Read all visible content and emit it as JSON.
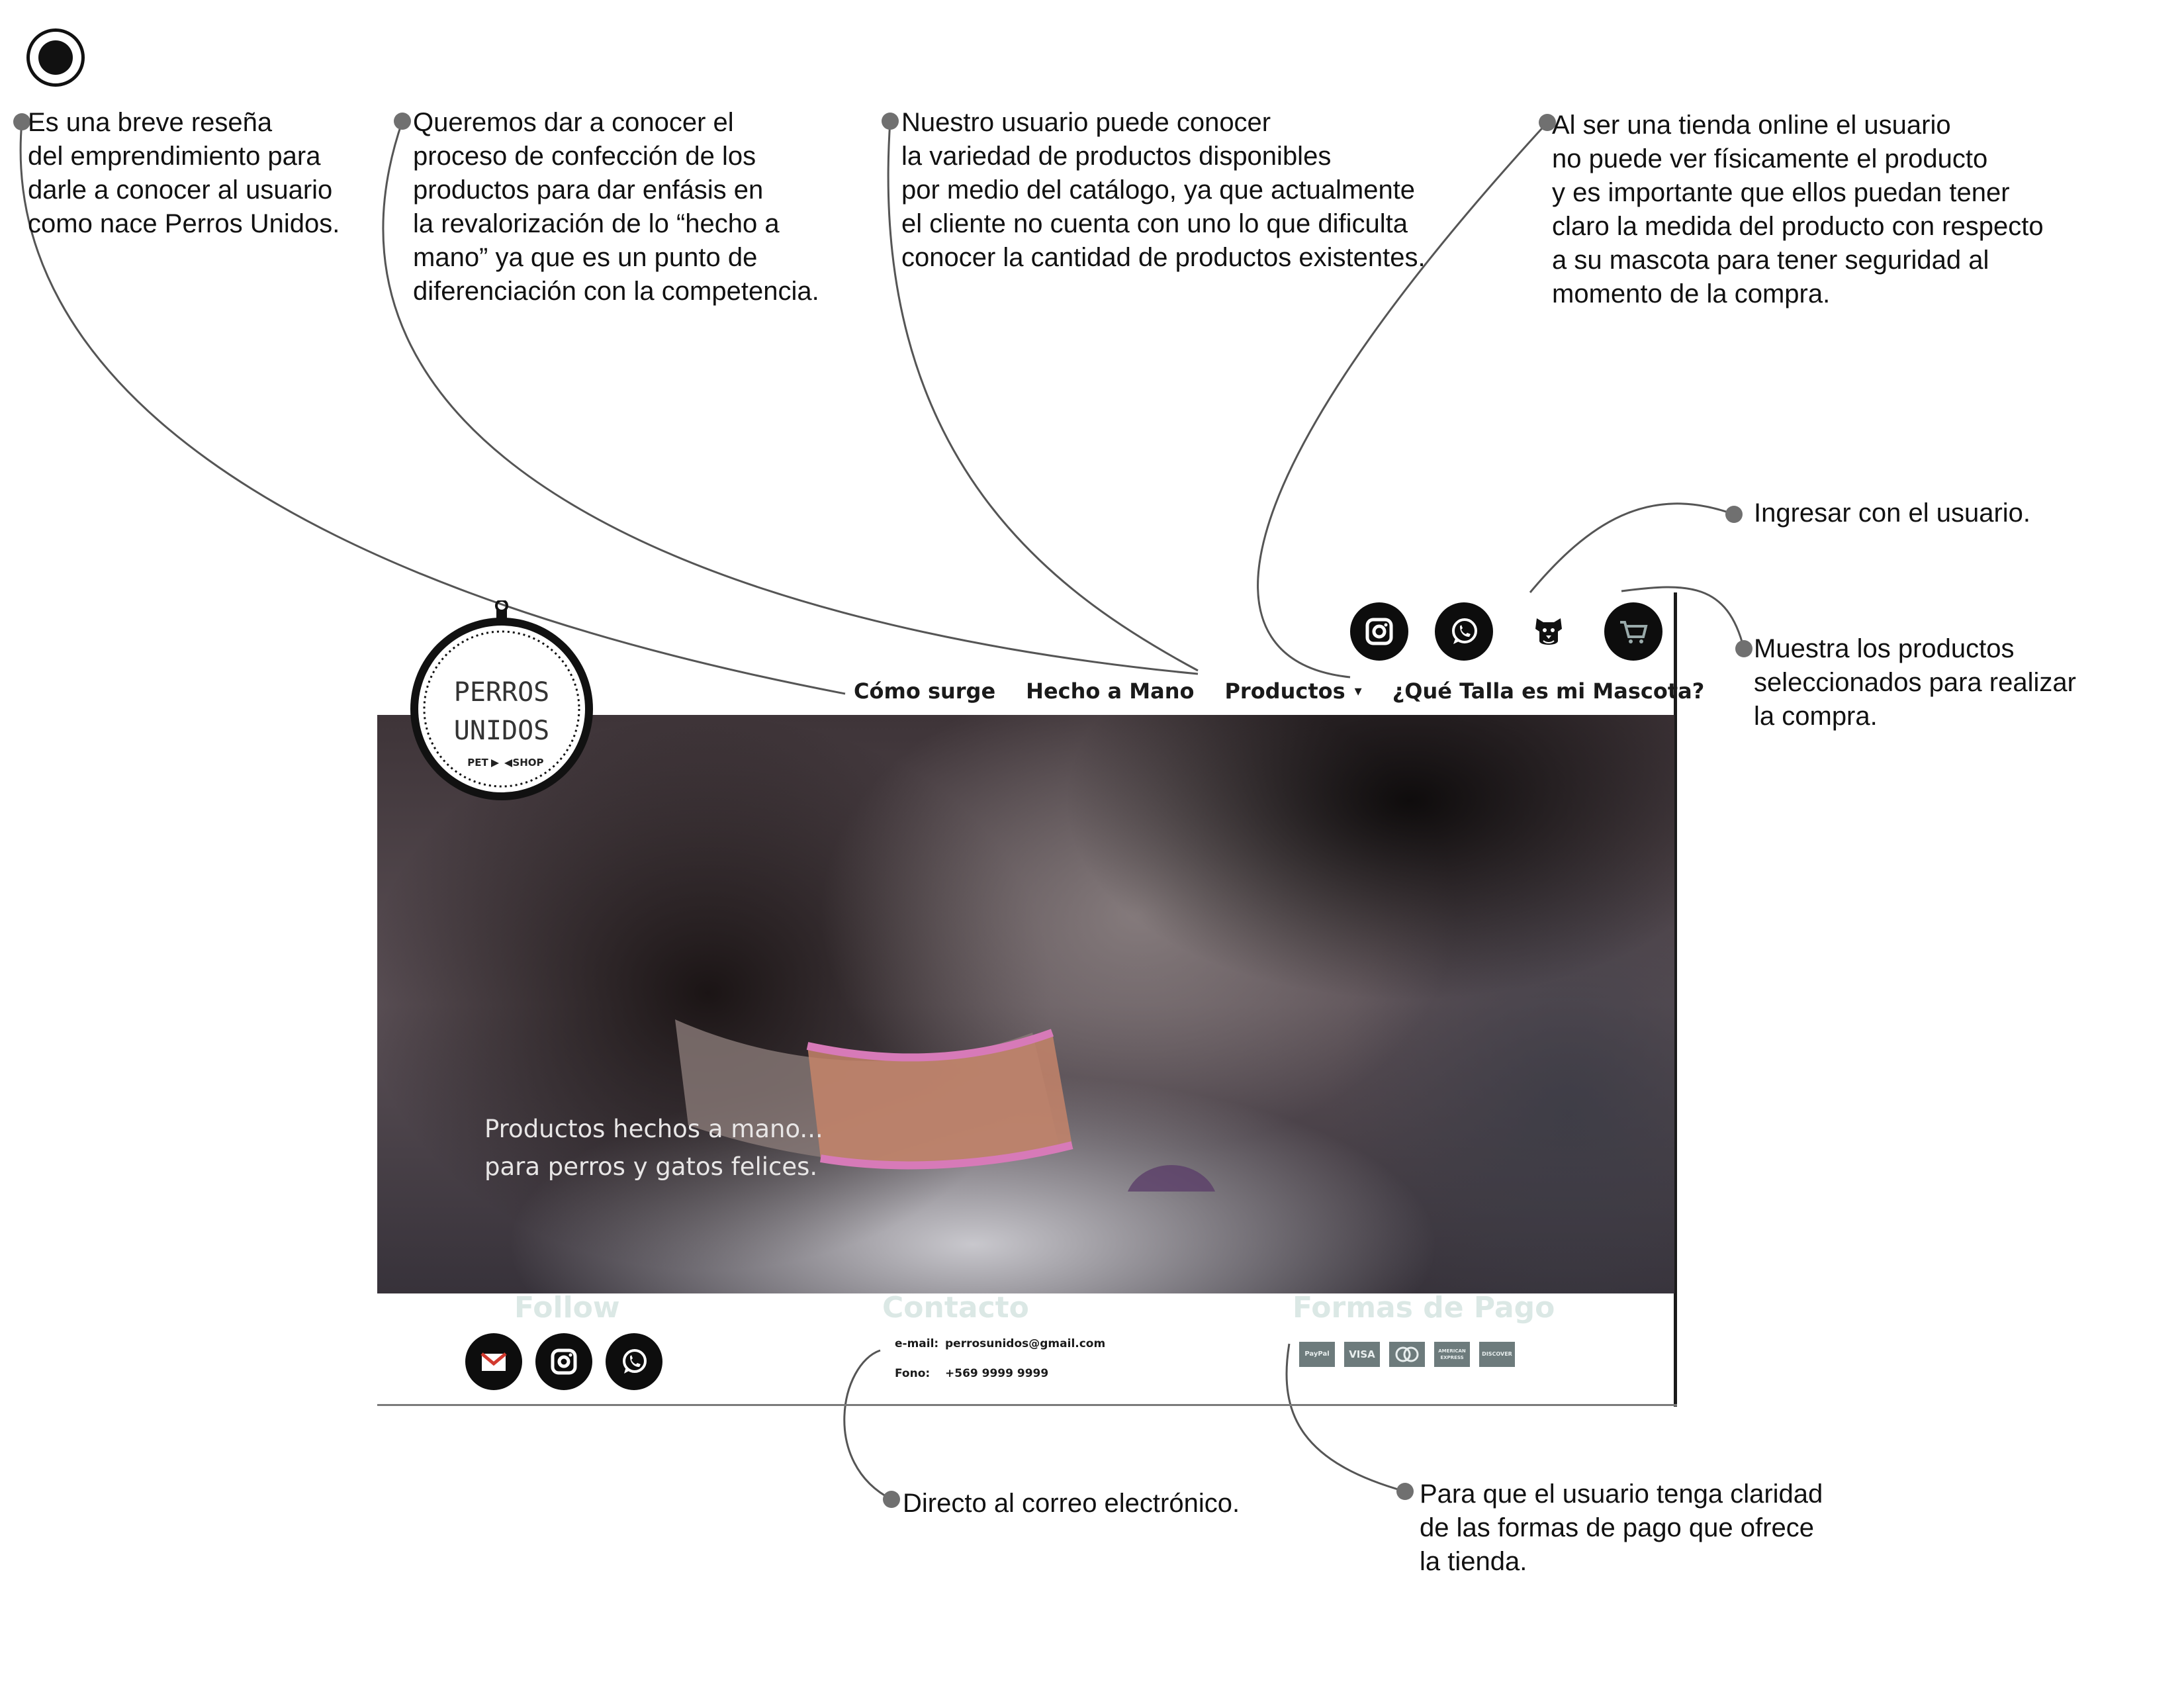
{
  "annotations": {
    "resena": "Es una breve reseña\ndel emprendimiento para\ndarle a conocer al usuario\ncomo nace Perros Unidos.",
    "hecho_mano": "Queremos dar  a conocer el\nproceso de confección de los\nproductos para dar enfásis en\nla revalorización de lo “hecho a\nmano” ya que es un punto de\ndiferenciación con la competencia.",
    "catalogo": "Nuestro usuario puede conocer\nla variedad de productos disponibles\npor medio del catálogo, ya que actualmente\n el cliente no cuenta con uno lo que dificulta\nconocer la cantidad de productos existentes.",
    "talla": "Al ser una tienda online el usuario\nno puede ver físicamente el producto\ny es importante que ellos puedan tener\nclaro la medida del producto con respecto\n a su mascota para tener seguridad al\n momento de la compra.",
    "ingresar": "Ingresar con el usuario.",
    "carrito": "Muestra los productos\nseleccionados para realizar\nla compra.",
    "correo": "Directo al correo electrónico.",
    "pago": "Para que el usuario tenga claridad\nde las formas de pago que ofrece\nla tienda."
  },
  "site": {
    "logo": {
      "line1": "PERROS",
      "line2": "UNIDOS",
      "left": "PET",
      "right": "SHOP"
    },
    "nav": [
      {
        "label": "Cómo surge"
      },
      {
        "label": "Hecho a Mano"
      },
      {
        "label": "Productos",
        "caret": "▾"
      },
      {
        "label": "¿Qué Talla es mi Mascota?"
      }
    ],
    "header_icons": [
      "instagram-icon",
      "whatsapp-icon",
      "dog-user-icon",
      "cart-icon"
    ],
    "hero_caption": "Productos hechos a mano...\npara perros y gatos felices.",
    "footer": {
      "follow_title": "Follow",
      "follow_icons": [
        "gmail-icon",
        "instagram-icon",
        "whatsapp-icon"
      ],
      "contact_title": "Contacto",
      "email_label": "e-mail:",
      "email_value": "perrosunidos@gmail.com",
      "phone_label": "Fono:",
      "phone_value": "+569 9999 9999",
      "payment_title": "Formas de Pago",
      "payment_methods": [
        "PayPal",
        "VISA",
        "mastercard",
        "AMERICAN EXPRESS",
        "DISCOVER"
      ]
    }
  },
  "colors": {
    "text": "#111111",
    "annotation_dot": "#707070",
    "footer_title": "#dbe8e5",
    "payment_badge": "#6d7b7c",
    "collar_pink": "#d77ab8"
  }
}
